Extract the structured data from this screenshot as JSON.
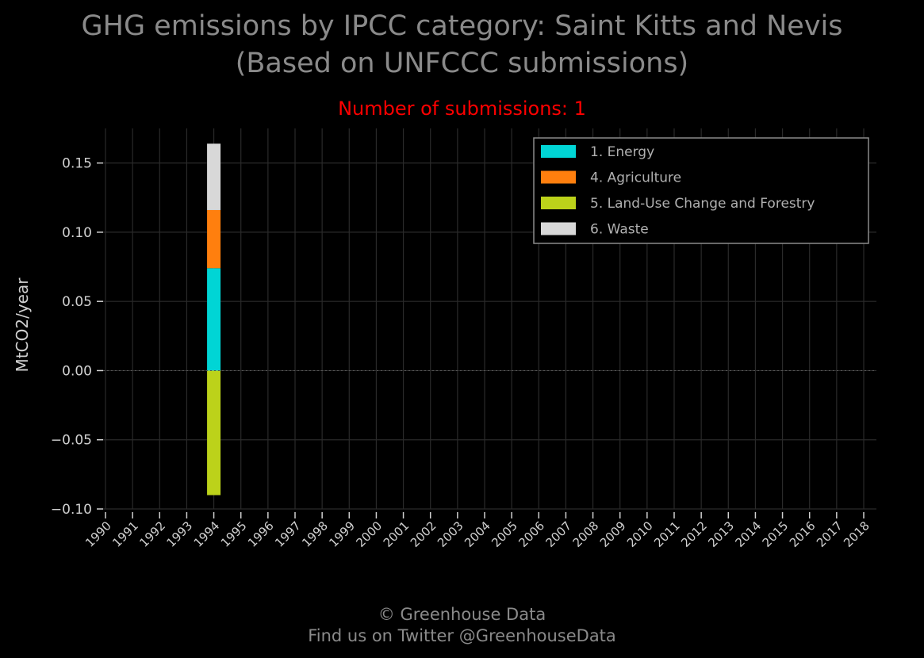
{
  "title_line1": "GHG emissions by IPCC category: Saint Kitts and Nevis",
  "title_line2": "(Based on UNFCCC submissions)",
  "subtitle": "Number of submissions: 1",
  "footer_line1": "© Greenhouse Data",
  "footer_line2": "Find us on Twitter @GreenhouseData",
  "colors": {
    "background": "#000000",
    "grid": "#2a2a2a",
    "axis_text": "#d0d0d0",
    "title": "#8a8a8a",
    "subtitle": "#ff0000"
  },
  "chart_data": {
    "type": "bar",
    "stacked": true,
    "ylabel": "MtCO2/year",
    "ylim": [
      -0.1,
      0.175
    ],
    "yticks": [
      -0.1,
      -0.05,
      0.0,
      0.05,
      0.1,
      0.15
    ],
    "ytick_labels": [
      "−0.10",
      "−0.05",
      "0.00",
      "0.05",
      "0.10",
      "0.15"
    ],
    "categories": [
      "1990",
      "1991",
      "1992",
      "1993",
      "1994",
      "1995",
      "1996",
      "1997",
      "1998",
      "1999",
      "2000",
      "2001",
      "2002",
      "2003",
      "2004",
      "2005",
      "2006",
      "2007",
      "2008",
      "2009",
      "2010",
      "2011",
      "2012",
      "2013",
      "2014",
      "2015",
      "2016",
      "2017",
      "2018"
    ],
    "series": [
      {
        "name": "1. Energy",
        "color": "#00d5d5",
        "values": {
          "1994": 0.074
        }
      },
      {
        "name": "4. Agriculture",
        "color": "#ff7f0e",
        "values": {
          "1994": 0.042
        }
      },
      {
        "name": "5. Land-Use Change and Forestry",
        "color": "#bcd21a",
        "values": {
          "1994": -0.09
        }
      },
      {
        "name": "6. Waste",
        "color": "#d8d8d8",
        "values": {
          "1994": 0.048
        }
      }
    ],
    "legend_position": "top-right",
    "grid": true
  }
}
